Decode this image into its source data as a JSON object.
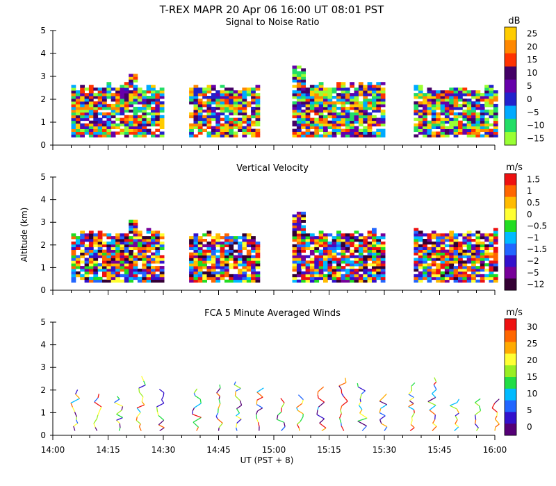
{
  "page": {
    "title": "T-REX   MAPR 20 Apr 06   16:00 UT   08:01   PST",
    "x_axis_label": "UT  (PST + 8)",
    "y_axis_label": "Altitude (km)",
    "x_tick_labels": [
      "14:00",
      "14:15",
      "14:30",
      "14:45",
      "15:00",
      "15:15",
      "15:30",
      "15:45",
      "16:00"
    ]
  },
  "chart_data": [
    {
      "type": "heatmap",
      "title": "Signal to Noise Ratio",
      "ylabel": "Altitude (km)",
      "xlabel": "UT  (PST + 8)",
      "x_range": [
        "14:00",
        "16:00"
      ],
      "ylim": [
        0,
        5
      ],
      "y_ticks": [
        0,
        1,
        2,
        3,
        4,
        5
      ],
      "colorbar": {
        "unit": "dB",
        "labels": [
          "25",
          "20",
          "15",
          "10",
          "5",
          "0",
          "−5",
          "−10",
          "−15"
        ],
        "colors": [
          "#ffcc00",
          "#ff8800",
          "#ff3300",
          "#440066",
          "#6600aa",
          "#2222cc",
          "#00aaff",
          "#22dd66",
          "#99ff33"
        ]
      },
      "data_blocks": [
        {
          "start": "14:05",
          "end": "14:30",
          "top_km": 2.5,
          "peak_km": 3.0,
          "peak_time": "14:21"
        },
        {
          "start": "14:37",
          "end": "14:56",
          "top_km": 2.5
        },
        {
          "start": "15:05",
          "end": "15:30",
          "top_km": 2.6,
          "peak_km": 3.4,
          "peak_time": "15:06"
        },
        {
          "start": "15:38",
          "end": "16:00",
          "top_km": 2.4
        }
      ]
    },
    {
      "type": "heatmap",
      "title": "Vertical Velocity",
      "ylabel": "Altitude (km)",
      "xlabel": "UT  (PST + 8)",
      "x_range": [
        "14:00",
        "16:00"
      ],
      "ylim": [
        0,
        5
      ],
      "y_ticks": [
        0,
        1,
        2,
        3,
        4,
        5
      ],
      "colorbar": {
        "unit": "m/s",
        "labels": [
          "1.5",
          "1",
          "0.5",
          "0",
          "−0.5",
          "−1",
          "−1.5",
          "−2",
          "−5",
          "−12"
        ],
        "colors": [
          "#ee1111",
          "#ff6600",
          "#ffbb00",
          "#ffff33",
          "#22dd22",
          "#00bbff",
          "#2266ff",
          "#3311cc",
          "#770099",
          "#330033"
        ]
      },
      "data_blocks": [
        {
          "start": "14:05",
          "end": "14:30",
          "top_km": 2.5,
          "peak_km": 3.0,
          "peak_time": "14:21"
        },
        {
          "start": "14:37",
          "end": "14:56",
          "top_km": 2.4
        },
        {
          "start": "15:05",
          "end": "15:30",
          "top_km": 2.5,
          "peak_km": 3.4,
          "peak_time": "15:06"
        },
        {
          "start": "15:38",
          "end": "16:00",
          "top_km": 2.5
        }
      ]
    },
    {
      "type": "scatter",
      "title": "FCA 5 Minute Averaged Winds",
      "ylabel": "Altitude (km)",
      "xlabel": "UT  (PST + 8)",
      "x_range": [
        "14:00",
        "16:00"
      ],
      "ylim": [
        0,
        5
      ],
      "y_ticks": [
        0,
        1,
        2,
        3,
        4,
        5
      ],
      "colorbar": {
        "unit": "m/s",
        "labels": [
          "30",
          "25",
          "20",
          "15",
          "10",
          "5",
          "0"
        ],
        "colors": [
          "#ee1111",
          "#ff6600",
          "#ffaa00",
          "#ffff33",
          "#99ee22",
          "#22dd44",
          "#00bbff",
          "#2266ff",
          "#3311cc",
          "#550077"
        ]
      },
      "wind_profile_times": [
        "14:06",
        "14:12",
        "14:18",
        "14:24",
        "14:29",
        "14:39",
        "14:45",
        "14:50",
        "14:56",
        "15:02",
        "15:07",
        "15:13",
        "15:19",
        "15:24",
        "15:30",
        "15:37",
        "15:43",
        "15:49",
        "15:55",
        "16:00"
      ]
    }
  ]
}
